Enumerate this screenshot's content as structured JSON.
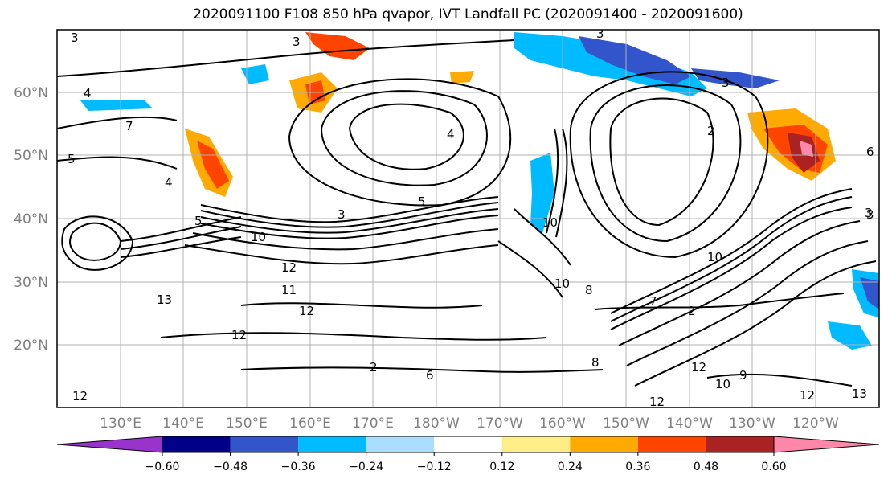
{
  "title": "2020091100 F108 850 hPa qvapor, IVT Landfall PC (2020091400 - 2020091600)",
  "lat_labels": [
    "60°N",
    "50°N",
    "40°N",
    "30°N",
    "20°N"
  ],
  "lon_labels": [
    "130°E",
    "140°E",
    "150°E",
    "160°E",
    "170°E",
    "180°W",
    "170°W",
    "160°W",
    "150°W",
    "140°W",
    "130°W",
    "120°W"
  ],
  "colorbar": {
    "ticks": [
      "−0.60",
      "−0.48",
      "−0.36",
      "−0.24",
      "−0.12",
      "0.12",
      "0.24",
      "0.36",
      "0.48",
      "0.60"
    ],
    "colors": [
      "#9933cc",
      "#000088",
      "#3355cc",
      "#00bbff",
      "#aaddff",
      "#ffffff",
      "#ffee88",
      "#ffaa00",
      "#ff4400",
      "#aa2222",
      "#ff88aa"
    ]
  },
  "contour_labels": [
    "3",
    "3",
    "3",
    "3",
    "4",
    "4",
    "7",
    "5",
    "5",
    "4",
    "6",
    "2",
    "3",
    "5",
    "3",
    "10",
    "10",
    "12",
    "11",
    "12",
    "13",
    "12",
    "10",
    "8",
    "10",
    "7",
    "2",
    "2",
    "6",
    "3",
    "12",
    "9",
    "8",
    "13",
    "10",
    "12",
    "12",
    "12"
  ]
}
